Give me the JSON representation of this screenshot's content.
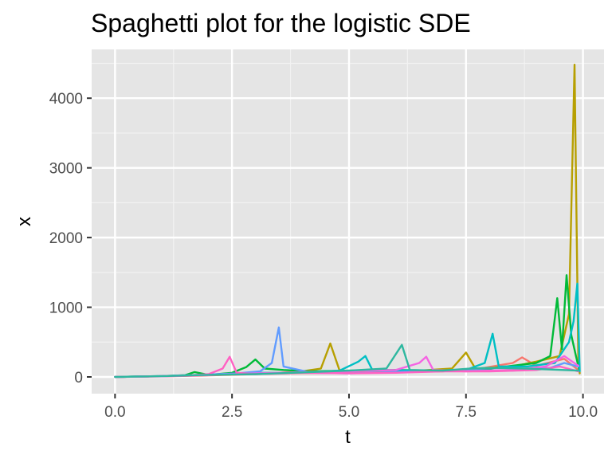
{
  "chart_data": {
    "type": "line",
    "title": "Spaghetti plot for the logistic SDE",
    "xlabel": "t",
    "ylabel": "x",
    "xlim": [
      -0.5,
      10.45
    ],
    "ylim": [
      -240,
      4700
    ],
    "x_ticks": [
      0.0,
      2.5,
      5.0,
      7.5,
      10.0
    ],
    "x_tick_labels": [
      "0.0",
      "2.5",
      "5.0",
      "7.5",
      "10.0"
    ],
    "y_ticks": [
      0,
      1000,
      2000,
      3000,
      4000
    ],
    "y_tick_labels": [
      "0",
      "1000",
      "2000",
      "3000",
      "4000"
    ],
    "grid": true,
    "legend": "none",
    "background": "#e5e5e5",
    "series": [
      {
        "color": "#f8766d",
        "points": [
          [
            0,
            0
          ],
          [
            1,
            8
          ],
          [
            2,
            22
          ],
          [
            3,
            40
          ],
          [
            4,
            55
          ],
          [
            5,
            60
          ],
          [
            6,
            70
          ],
          [
            7,
            80
          ],
          [
            7.8,
            120
          ],
          [
            8.5,
            200
          ],
          [
            8.7,
            280
          ],
          [
            9,
            160
          ],
          [
            9.6,
            260
          ],
          [
            9.9,
            100
          ]
        ]
      },
      {
        "color": "#b79f00",
        "points": [
          [
            0,
            0
          ],
          [
            1,
            10
          ],
          [
            2,
            25
          ],
          [
            3,
            45
          ],
          [
            3.5,
            60
          ],
          [
            4,
            80
          ],
          [
            4.4,
            120
          ],
          [
            4.6,
            480
          ],
          [
            4.8,
            90
          ],
          [
            5.5,
            70
          ],
          [
            6.5,
            90
          ],
          [
            7.2,
            120
          ],
          [
            7.5,
            350
          ],
          [
            7.7,
            120
          ],
          [
            8.5,
            150
          ],
          [
            9,
            220
          ],
          [
            9.5,
            300
          ],
          [
            9.7,
            900
          ],
          [
            9.82,
            4480
          ],
          [
            9.9,
            300
          ],
          [
            9.93,
            50
          ]
        ]
      },
      {
        "color": "#00ba38",
        "points": [
          [
            0,
            0
          ],
          [
            1,
            12
          ],
          [
            1.5,
            25
          ],
          [
            1.7,
            70
          ],
          [
            2,
            30
          ],
          [
            2.5,
            60
          ],
          [
            2.8,
            140
          ],
          [
            3,
            250
          ],
          [
            3.2,
            120
          ],
          [
            3.6,
            100
          ],
          [
            4.2,
            80
          ],
          [
            5,
            90
          ],
          [
            6,
            100
          ],
          [
            7,
            90
          ],
          [
            8,
            120
          ],
          [
            9,
            200
          ],
          [
            9.3,
            300
          ],
          [
            9.45,
            1130
          ],
          [
            9.55,
            400
          ],
          [
            9.65,
            1460
          ],
          [
            9.75,
            600
          ],
          [
            9.85,
            300
          ],
          [
            9.92,
            100
          ]
        ]
      },
      {
        "color": "#00bfc4",
        "points": [
          [
            0,
            0
          ],
          [
            1,
            10
          ],
          [
            2,
            30
          ],
          [
            3,
            60
          ],
          [
            4,
            60
          ],
          [
            4.8,
            90
          ],
          [
            5.2,
            220
          ],
          [
            5.35,
            300
          ],
          [
            5.5,
            100
          ],
          [
            6.5,
            90
          ],
          [
            7.5,
            100
          ],
          [
            7.9,
            200
          ],
          [
            8.07,
            620
          ],
          [
            8.2,
            150
          ],
          [
            8.8,
            150
          ],
          [
            9.4,
            200
          ],
          [
            9.7,
            500
          ],
          [
            9.8,
            800
          ],
          [
            9.88,
            1340
          ],
          [
            9.93,
            80
          ]
        ]
      },
      {
        "color": "#619cff",
        "points": [
          [
            0,
            0
          ],
          [
            1,
            12
          ],
          [
            2,
            35
          ],
          [
            2.6,
            50
          ],
          [
            3.1,
            80
          ],
          [
            3.35,
            200
          ],
          [
            3.5,
            710
          ],
          [
            3.6,
            150
          ],
          [
            4.2,
            60
          ],
          [
            5,
            50
          ],
          [
            6.5,
            80
          ],
          [
            7.5,
            100
          ],
          [
            8.5,
            90
          ],
          [
            9.3,
            130
          ],
          [
            9.6,
            200
          ],
          [
            9.9,
            150
          ]
        ]
      },
      {
        "color": "#f564e3",
        "points": [
          [
            0,
            0
          ],
          [
            1,
            8
          ],
          [
            2,
            25
          ],
          [
            3,
            50
          ],
          [
            4,
            70
          ],
          [
            5,
            80
          ],
          [
            6,
            100
          ],
          [
            6.5,
            200
          ],
          [
            6.65,
            290
          ],
          [
            6.8,
            100
          ],
          [
            7.5,
            80
          ],
          [
            8.5,
            100
          ],
          [
            9.2,
            150
          ],
          [
            9.6,
            300
          ],
          [
            9.9,
            160
          ]
        ]
      },
      {
        "color": "#ff61c3",
        "points": [
          [
            0,
            0
          ],
          [
            0.8,
            8
          ],
          [
            1.5,
            20
          ],
          [
            2,
            40
          ],
          [
            2.3,
            120
          ],
          [
            2.45,
            290
          ],
          [
            2.6,
            60
          ],
          [
            3,
            40
          ],
          [
            4,
            60
          ],
          [
            5,
            50
          ],
          [
            6,
            60
          ],
          [
            7,
            80
          ],
          [
            8,
            80
          ],
          [
            9,
            100
          ],
          [
            9.5,
            150
          ],
          [
            9.9,
            80
          ]
        ]
      },
      {
        "color": "#2eb8a0",
        "points": [
          [
            0,
            0
          ],
          [
            1,
            10
          ],
          [
            2,
            30
          ],
          [
            3,
            40
          ],
          [
            3.8,
            60
          ],
          [
            5,
            90
          ],
          [
            5.8,
            120
          ],
          [
            6.13,
            460
          ],
          [
            6.3,
            100
          ],
          [
            7,
            90
          ],
          [
            7.6,
            120
          ],
          [
            8,
            130
          ],
          [
            8.8,
            120
          ],
          [
            9.9,
            90
          ]
        ]
      }
    ]
  }
}
